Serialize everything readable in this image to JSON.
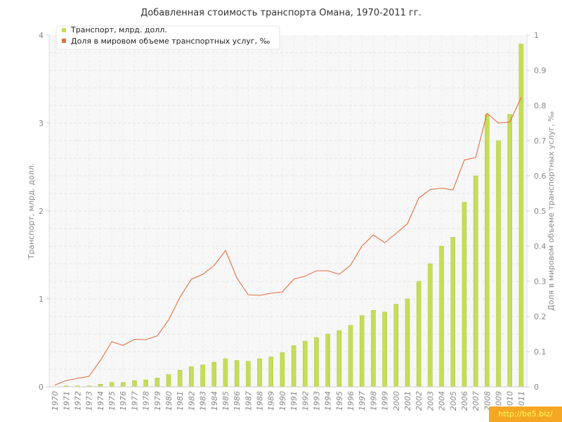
{
  "chart_data": {
    "type": "bar",
    "title": "Добавленная стоимость транспорта Омана, 1970-2011 гг.",
    "ylabel": "Транспорт, млрд. долл.",
    "y2label": "Доля в мировом объеме транспортных услуг, ‰",
    "ylim": [
      0,
      4
    ],
    "y2lim": [
      0,
      1
    ],
    "yticks": [
      "0",
      "1",
      "2",
      "3",
      "4"
    ],
    "y2ticks": [
      "0",
      "0.1",
      "0.2",
      "0.3",
      "0.4",
      "0.5",
      "0.6",
      "0.7",
      "0.8",
      "0.9",
      "1"
    ],
    "grid": true,
    "legend_position": "top-left",
    "colors": {
      "bars": "#c5dd57",
      "bars_edge": "#a9c636",
      "line": "#e07040"
    },
    "categories": [
      "1970",
      "1971",
      "1972",
      "1973",
      "1974",
      "1975",
      "1976",
      "1977",
      "1978",
      "1979",
      "1980",
      "1981",
      "1982",
      "1983",
      "1984",
      "1985",
      "1986",
      "1987",
      "1988",
      "1989",
      "1990",
      "1991",
      "1992",
      "1993",
      "1994",
      "1995",
      "1996",
      "1997",
      "1998",
      "1999",
      "2000",
      "2001",
      "2002",
      "2003",
      "2004",
      "2005",
      "2006",
      "2007",
      "2008",
      "2009",
      "2010",
      "2011"
    ],
    "series": [
      {
        "name": "Транспорт, млрд. долл.",
        "kind": "bar",
        "axis": "left",
        "values": [
          0.0,
          0.01,
          0.01,
          0.01,
          0.03,
          0.05,
          0.05,
          0.07,
          0.08,
          0.1,
          0.14,
          0.19,
          0.23,
          0.25,
          0.28,
          0.32,
          0.3,
          0.29,
          0.32,
          0.34,
          0.39,
          0.47,
          0.52,
          0.56,
          0.6,
          0.64,
          0.7,
          0.81,
          0.87,
          0.85,
          0.94,
          1.0,
          1.2,
          1.4,
          1.6,
          1.7,
          2.1,
          2.4,
          3.1,
          2.8,
          3.1,
          3.9
        ]
      },
      {
        "name": "Доля в мировом объеме транспортных услуг, ‰",
        "kind": "line",
        "axis": "right",
        "values": [
          0.005,
          0.018,
          0.024,
          0.03,
          0.075,
          0.128,
          0.118,
          0.135,
          0.134,
          0.145,
          0.19,
          0.255,
          0.306,
          0.32,
          0.345,
          0.388,
          0.31,
          0.262,
          0.26,
          0.266,
          0.27,
          0.306,
          0.315,
          0.33,
          0.33,
          0.32,
          0.346,
          0.4,
          0.432,
          0.41,
          0.436,
          0.464,
          0.537,
          0.561,
          0.565,
          0.56,
          0.645,
          0.652,
          0.778,
          0.75,
          0.753,
          0.823
        ]
      }
    ]
  }
}
